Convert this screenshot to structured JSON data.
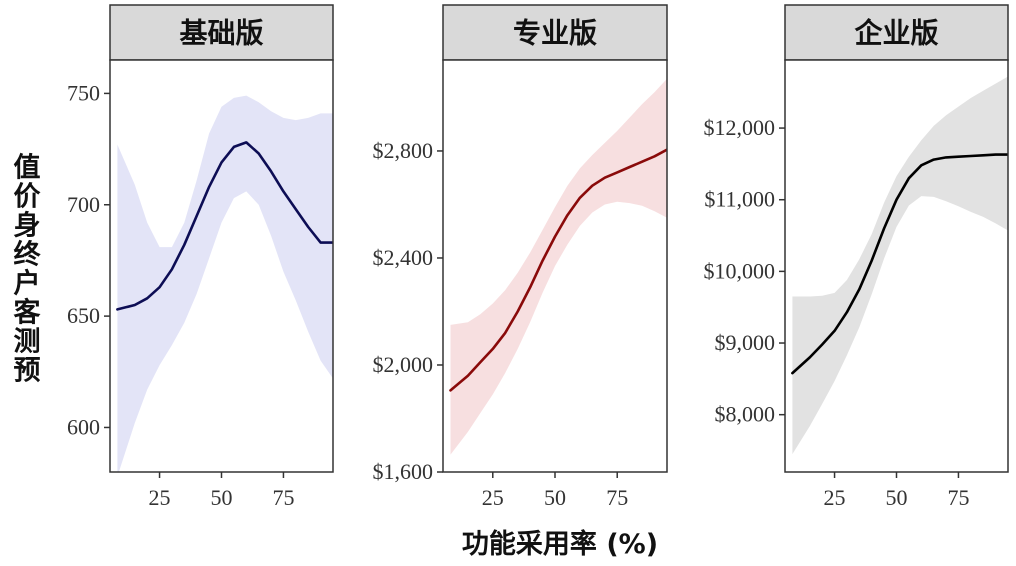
{
  "ylabel": "值价身终户客测预",
  "xlabel": "功能采用率 (%)",
  "chart_data": [
    {
      "type": "line",
      "title": "基础版",
      "color": "#0d0d55",
      "band_color": "#e3e4f7",
      "xlim": [
        5,
        95
      ],
      "x_ticks": [
        25,
        50,
        75
      ],
      "x_tick_labels": [
        "25",
        "50",
        "75"
      ],
      "ylim": [
        580,
        765
      ],
      "y_ticks": [
        600,
        650,
        700,
        750
      ],
      "y_tick_labels": [
        "600",
        "650",
        "700",
        "750"
      ],
      "series": [
        {
          "x": [
            8,
            15,
            20,
            25,
            30,
            35,
            40,
            45,
            50,
            55,
            60,
            65,
            70,
            75,
            80,
            85,
            90,
            95
          ],
          "y": [
            653,
            655,
            658,
            663,
            671,
            682,
            695,
            708,
            719,
            726,
            728,
            723,
            715,
            706,
            698,
            690,
            683,
            683
          ],
          "lower": [
            578,
            602,
            617,
            628,
            637,
            647,
            660,
            676,
            692,
            703,
            706,
            700,
            686,
            670,
            657,
            643,
            630,
            622
          ],
          "upper": [
            727,
            709,
            692,
            681,
            681,
            692,
            711,
            732,
            744,
            748,
            749,
            746,
            742,
            739,
            738,
            739,
            741,
            741
          ]
        }
      ]
    },
    {
      "type": "line",
      "title": "专业版",
      "color": "#8a0a0a",
      "band_color": "#f7dfe0",
      "xlim": [
        5,
        95
      ],
      "x_ticks": [
        25,
        50,
        75
      ],
      "x_tick_labels": [
        "25",
        "50",
        "75"
      ],
      "ylim": [
        1600,
        3140
      ],
      "y_ticks": [
        1600,
        2000,
        2400,
        2800
      ],
      "y_tick_labels": [
        "$1,600",
        "$2,000",
        "$2,400",
        "$2,800"
      ],
      "series": [
        {
          "x": [
            8,
            15,
            20,
            25,
            30,
            35,
            40,
            45,
            50,
            55,
            60,
            65,
            70,
            75,
            80,
            85,
            90,
            95
          ],
          "y": [
            1905,
            1960,
            2010,
            2060,
            2120,
            2200,
            2290,
            2390,
            2480,
            2560,
            2625,
            2670,
            2700,
            2720,
            2740,
            2760,
            2780,
            2805
          ],
          "lower": [
            1665,
            1750,
            1820,
            1890,
            1970,
            2060,
            2160,
            2270,
            2370,
            2450,
            2520,
            2570,
            2600,
            2610,
            2605,
            2595,
            2575,
            2550
          ],
          "upper": [
            2150,
            2160,
            2190,
            2230,
            2280,
            2345,
            2420,
            2505,
            2590,
            2670,
            2735,
            2785,
            2830,
            2875,
            2925,
            2975,
            3020,
            3070
          ]
        }
      ]
    },
    {
      "type": "line",
      "title": "企业版",
      "color": "#000000",
      "band_color": "#e2e2e2",
      "xlim": [
        5,
        95
      ],
      "x_ticks": [
        25,
        50,
        75
      ],
      "x_tick_labels": [
        "25",
        "50",
        "75"
      ],
      "ylim": [
        7200,
        12950
      ],
      "y_ticks": [
        8000,
        9000,
        10000,
        11000,
        12000
      ],
      "y_tick_labels": [
        "$8,000",
        "$9,000",
        "$10,000",
        "$11,000",
        "$12,000"
      ],
      "series": [
        {
          "x": [
            8,
            15,
            20,
            25,
            30,
            35,
            40,
            45,
            50,
            55,
            60,
            65,
            70,
            75,
            80,
            85,
            90,
            95
          ],
          "y": [
            8580,
            8800,
            8980,
            9170,
            9430,
            9750,
            10150,
            10600,
            11000,
            11300,
            11480,
            11560,
            11590,
            11600,
            11610,
            11620,
            11630,
            11630
          ],
          "lower": [
            7450,
            7840,
            8150,
            8470,
            8830,
            9220,
            9680,
            10180,
            10620,
            10920,
            11050,
            11040,
            10980,
            10910,
            10830,
            10760,
            10670,
            10570
          ],
          "upper": [
            9650,
            9650,
            9660,
            9700,
            9880,
            10170,
            10520,
            10960,
            11330,
            11600,
            11830,
            12030,
            12180,
            12300,
            12420,
            12520,
            12620,
            12720
          ]
        }
      ]
    }
  ]
}
